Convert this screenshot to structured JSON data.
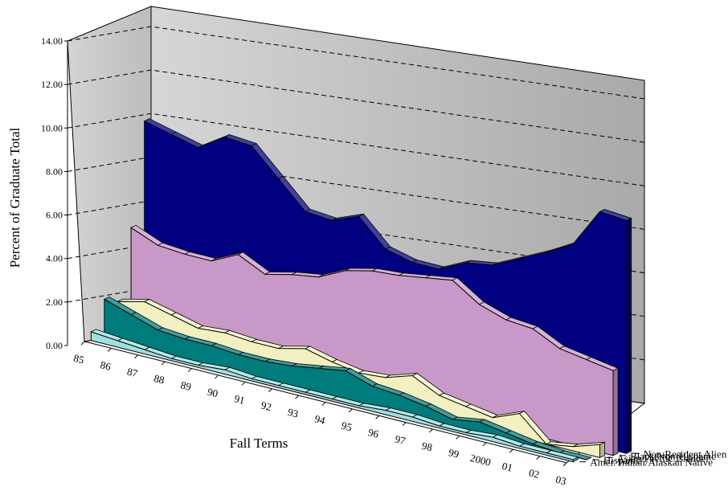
{
  "chart_data": {
    "type": "area",
    "subtype": "3d-area",
    "title": "",
    "ylabel": "Percent of Graduate Total",
    "xlabel": "Fall Terms",
    "ylim": [
      0,
      14
    ],
    "ytick_labels": [
      "0.00",
      "2.00",
      "4.00",
      "6.00",
      "8.00",
      "10.00",
      "12.00",
      "14.00"
    ],
    "categories": [
      "85",
      "86",
      "87",
      "88",
      "89",
      "90",
      "91",
      "92",
      "93",
      "94",
      "95",
      "96",
      "97",
      "98",
      "99",
      "2000",
      "01",
      "02",
      "03"
    ],
    "grid": true,
    "series": [
      {
        "name": "Non-Resident Alien",
        "color": "#000080",
        "values": [
          9.7,
          9.4,
          9.1,
          9.9,
          9.8,
          8.6,
          7.4,
          7.3,
          7.8,
          6.6,
          6.3,
          6.3,
          6.9,
          7.1,
          7.7,
          8.3,
          9.0,
          10.8,
          10.7
        ]
      },
      {
        "name": "Black/Non-Hispanic",
        "color": "#c898c8",
        "values": [
          4.9,
          4.4,
          4.3,
          4.3,
          4.9,
          4.3,
          4.6,
          4.8,
          5.4,
          5.7,
          5.8,
          6.0,
          6.2,
          5.4,
          5.0,
          4.9,
          4.3,
          4.1,
          3.9
        ]
      },
      {
        "name": "Asian/Pacific Islander",
        "color": "#f2f0c0",
        "values": [
          1.6,
          1.9,
          1.6,
          1.3,
          1.4,
          1.3,
          1.3,
          1.6,
          1.3,
          1.1,
          1.2,
          1.6,
          1.0,
          0.8,
          0.6,
          1.1,
          0.0,
          0.2,
          0.6
        ]
      },
      {
        "name": "Hispanic",
        "color": "#007c7c",
        "values": [
          1.8,
          1.4,
          1.0,
          0.9,
          0.9,
          0.8,
          0.8,
          0.9,
          1.1,
          1.3,
          0.9,
          0.8,
          0.6,
          0.3,
          0.5,
          0.3,
          0.1,
          0.0,
          0.0
        ]
      },
      {
        "name": "Amer. Indian/Alaskan Native",
        "color": "#a0e0e0",
        "values": [
          0.4,
          0.3,
          0.2,
          0.1,
          0.1,
          0.2,
          0.1,
          0.1,
          0.1,
          0.1,
          0.1,
          0.2,
          0.2,
          0.1,
          0.1,
          0.2,
          0.1,
          0.1,
          0.1
        ]
      }
    ]
  }
}
